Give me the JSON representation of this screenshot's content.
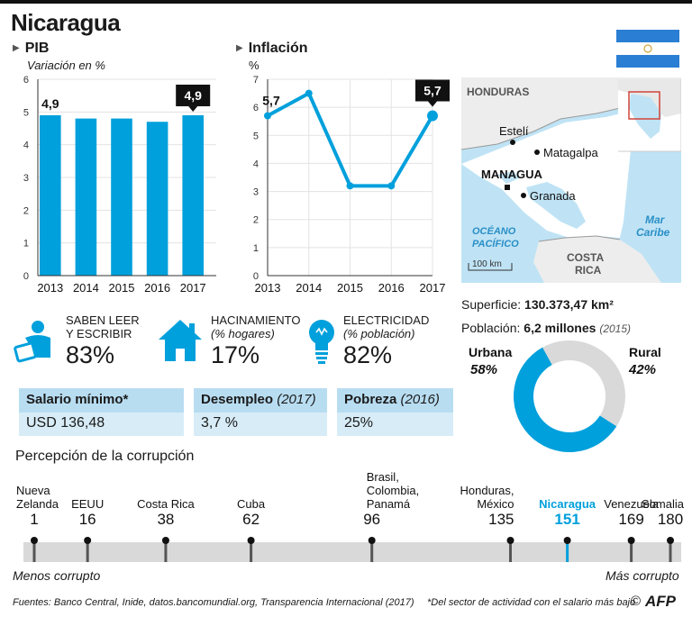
{
  "title": "Nicaragua",
  "colors": {
    "accent": "#00a0dc",
    "grey": "#d9d9d9",
    "flag_blue": "#2a7fd4",
    "map_land": "#ededed",
    "map_sea": "#bfe3f5"
  },
  "chart_data": [
    {
      "type": "bar",
      "title": "PIB",
      "ylabel": "Variación en %",
      "categories": [
        "2013",
        "2014",
        "2015",
        "2016",
        "2017"
      ],
      "values": [
        4.9,
        4.8,
        4.8,
        4.7,
        4.9
      ],
      "ylim": [
        0,
        6
      ],
      "yticks": [
        "0",
        "1",
        "2",
        "3",
        "4",
        "5",
        "6"
      ],
      "first_label": "4,9",
      "last_label": "4,9"
    },
    {
      "type": "line",
      "title": "Inflación",
      "ylabel": "%",
      "categories": [
        "2013",
        "2014",
        "2015",
        "2016",
        "2017"
      ],
      "values": [
        5.7,
        6.5,
        3.2,
        3.2,
        5.7
      ],
      "ylim": [
        0,
        7
      ],
      "yticks": [
        "0",
        "1",
        "2",
        "3",
        "4",
        "5",
        "6",
        "7"
      ],
      "first_label": "5,7",
      "last_label": "5,7"
    },
    {
      "type": "pie",
      "title": "Población",
      "series": [
        {
          "name": "Urbana",
          "value": 58,
          "label": "58%"
        },
        {
          "name": "Rural",
          "value": 42,
          "label": "42%"
        }
      ]
    },
    {
      "type": "scatter",
      "title": "Percepción de la corrupción",
      "xlim": [
        1,
        180
      ],
      "points": [
        {
          "name": "Nueva Zelanda",
          "value": 1
        },
        {
          "name": "EEUU",
          "value": 16
        },
        {
          "name": "Costa Rica",
          "value": 38
        },
        {
          "name": "Cuba",
          "value": 62
        },
        {
          "name": "Brasil, Colombia, Panamá",
          "value": 96
        },
        {
          "name": "Honduras, México",
          "value": 135
        },
        {
          "name": "Nicaragua",
          "value": 151
        },
        {
          "name": "Venezuela",
          "value": 169
        },
        {
          "name": "Somalia",
          "value": 180
        }
      ]
    }
  ],
  "pib": {
    "title": "PIB",
    "subtitle": "Variación en %"
  },
  "inflacion": {
    "title": "Inflación",
    "unit": "%"
  },
  "map": {
    "labels": {
      "honduras": "HONDURAS",
      "esteli": "Estelí",
      "matagalpa": "Matagalpa",
      "managua": "MANAGUA",
      "granada": "Granada",
      "oceano1": "OCÉANO",
      "oceano2": "PACÍFICO",
      "mar1": "Mar",
      "mar2": "Caribe",
      "costa1": "COSTA",
      "costa2": "RICA",
      "scale": "100 km"
    }
  },
  "stats": {
    "leer": {
      "label1": "SABEN LEER",
      "label2": "Y ESCRIBIR",
      "value": "83%"
    },
    "hacinamiento": {
      "label1": "HACINAMIENTO",
      "label2": "(% hogares)",
      "value": "17%"
    },
    "electricidad": {
      "label1": "ELECTRICIDAD",
      "label2": "(% población)",
      "value": "82%"
    }
  },
  "boxes": {
    "salario": {
      "label": "Salario mínimo*",
      "value": "USD 136,48"
    },
    "desempleo": {
      "label": "Desempleo",
      "label_year": "(2017)",
      "value": "3,7 %"
    },
    "pobreza": {
      "label": "Pobreza",
      "label_year": "(2016)",
      "value": "25%"
    }
  },
  "geo": {
    "superficie_label": "Superficie:",
    "superficie_value": "130.373,47 km²",
    "poblacion_label": "Población:",
    "poblacion_value": "6,2 millones",
    "poblacion_year": "(2015)"
  },
  "corrupcion": {
    "title": "Percepción de la corrupción",
    "left_label": "Menos corrupto",
    "right_label": "Más corrupto"
  },
  "footer": {
    "sources": "Fuentes: Banco Central, Inide, datos.bancomundial.org, Transparencia Internacional (2017)",
    "note": "*Del sector de actividad con el salario más bajo",
    "copyright": "©",
    "logo": "AFP"
  }
}
